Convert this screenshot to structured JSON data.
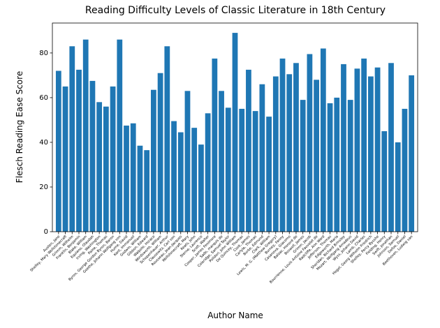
{
  "chart_data": {
    "type": "bar",
    "title": "Reading Difficulty Levels of Classic Literature in 18th Century",
    "x_label": "Author Name",
    "y_label": "Flesch Reading Ease Score",
    "categories": [
      "Austen, Jane",
      "Shelley, Mary Wollstonecraft",
      "Grimm, Wilhelm",
      "Franklin, Benjamin",
      "Blake, William",
      "Equiano, Olaudah",
      "Irving, Washington",
      "Paine, Thomas",
      "Byron, George Gordon Byron, Baron",
      "Goethe, Johann Wolfgang von",
      "Hume, David",
      "Kant, Immanuel",
      "Godwin, William",
      "Gibbon, Edward",
      "Walpole, Horace",
      "Wordsworth, William",
      "Schopenhauer, Arthur",
      "Clausewitz, Carl von",
      "Rousseau, Jean-Jacques",
      "Wollstonecraft, Mary",
      "Keats, John",
      "Sterne, Laurence",
      "Scott, Walter",
      "Cooper, James Fenimore",
      "Sade, marquis de",
      "Coleridge, Samuel Taylor",
      "Polidori, John William",
      "De Quincey, Thomas",
      "Cook, James",
      "Carlyle, Thomas",
      "Burke, Edmund",
      "Clark, William",
      "Lewis, M. G. (Matthew Gregory)",
      "Burney, Fanny",
      "Casanova, Giacomo",
      "Balzac, Honoré de",
      "Boswell, James",
      "Grimm, Jacob",
      "Bourrienne, Louis Antoine Fauvelet de",
      "Radcliffe, Ann Ward",
      "Jefferson, Thomas",
      "Edgeworth, Maria",
      "Sheridan, Richard Brinsley",
      "Mozart, Wolfgang Amadeus",
      "Wyss, Johann David",
      "Lamb, Charles",
      "Hegel, Georg Wilhelm Friedrich",
      "Shelley, Percy Bysshe",
      "Fielding, Henry",
      "Swift, Jonathan",
      "Johnson, Samuel",
      "Defoe, Daniel",
      "Beethoven, Ludwig van"
    ],
    "values": [
      72,
      65,
      83,
      72.5,
      86,
      67.5,
      58,
      56,
      65,
      86,
      47.5,
      48.5,
      38.5,
      36.5,
      63.5,
      71,
      83,
      49.5,
      44.5,
      63,
      46.5,
      39,
      53,
      77.5,
      63,
      55.5,
      89,
      55,
      72.5,
      54,
      66,
      51.5,
      69.5,
      77.5,
      70.5,
      75.5,
      59,
      79.5,
      68,
      82,
      57.5,
      60,
      75,
      59,
      73,
      77.5,
      69.5,
      73.5,
      45,
      75.5,
      40,
      55,
      70
    ],
    "color": "#1f77b4",
    "ylim": [
      0,
      93.4
    ],
    "yticks": [
      0,
      20,
      40,
      60,
      80
    ],
    "grid": false
  }
}
